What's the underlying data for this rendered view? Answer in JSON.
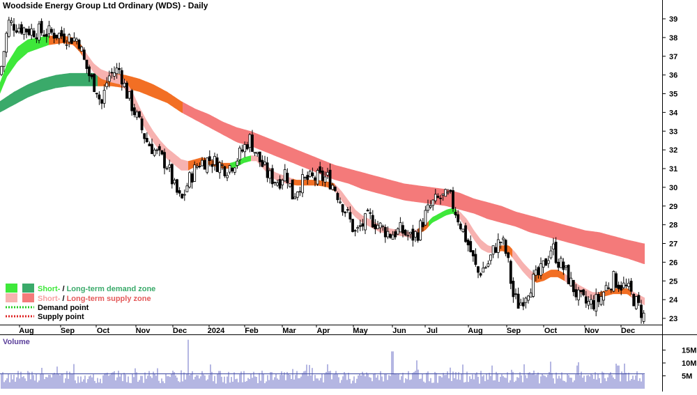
{
  "chart_data": {
    "type": "candlestick",
    "title": "Woodside Energy Group Ltd Ordinary (WDS) - Daily",
    "x_months": [
      "Aug",
      "Sep",
      "Oct",
      "Nov",
      "Dec",
      "2024",
      "Feb",
      "Mar",
      "Apr",
      "May",
      "Jun",
      "Jul",
      "Aug",
      "Sep",
      "Oct",
      "Nov",
      "Dec"
    ],
    "y_ticks": [
      23,
      24,
      25,
      26,
      27,
      28,
      29,
      30,
      31,
      32,
      33,
      34,
      35,
      36,
      37,
      38,
      39
    ],
    "ylim": [
      22.6,
      39.6
    ],
    "grid": false,
    "legend_position": "bottom-left",
    "legend": {
      "row1_a": "Short-",
      "row1_b": " / ",
      "row1_c": "Long-term demand zone",
      "row2_a": "Short-",
      "row2_b": " / ",
      "row2_c": "Long-term supply zone",
      "row3": "Demand point",
      "row4": "Supply point"
    },
    "colors": {
      "short_demand": "#3ee83a",
      "long_demand": "#3aaa6a",
      "short_supply": "#f7b2b0",
      "long_supply": "#f47a7a",
      "transition": "#f26f24",
      "demand_point": "#22cc22",
      "supply_point": "#dd2222",
      "volume_line": "#4a55a8",
      "volume_bar": "#6a6cc4"
    },
    "price_series": [
      [
        0,
        36.0
      ],
      [
        12,
        38.8
      ],
      [
        25,
        38.6
      ],
      [
        40,
        38.4
      ],
      [
        60,
        38.3
      ],
      [
        80,
        38.2
      ],
      [
        100,
        38.0
      ],
      [
        113,
        37.9
      ],
      [
        120,
        36.8
      ],
      [
        130,
        35.8
      ],
      [
        140,
        35.2
      ],
      [
        145,
        34.3
      ],
      [
        155,
        35.9
      ],
      [
        165,
        36.2
      ],
      [
        172,
        36.3
      ],
      [
        180,
        35.2
      ],
      [
        190,
        34.3
      ],
      [
        200,
        33.4
      ],
      [
        210,
        32.5
      ],
      [
        225,
        31.8
      ],
      [
        240,
        31.2
      ],
      [
        250,
        30.0
      ],
      [
        260,
        29.2
      ],
      [
        270,
        30.3
      ],
      [
        285,
        31.3
      ],
      [
        300,
        31.5
      ],
      [
        315,
        31.2
      ],
      [
        325,
        31.0
      ],
      [
        335,
        31.3
      ],
      [
        345,
        31.8
      ],
      [
        358,
        32.6
      ],
      [
        370,
        31.6
      ],
      [
        385,
        30.6
      ],
      [
        400,
        30.3
      ],
      [
        410,
        30.9
      ],
      [
        420,
        29.5
      ],
      [
        430,
        30.2
      ],
      [
        440,
        30.4
      ],
      [
        455,
        30.5
      ],
      [
        470,
        30.5
      ],
      [
        480,
        30.0
      ],
      [
        490,
        29.2
      ],
      [
        500,
        28.4
      ],
      [
        510,
        27.5
      ],
      [
        520,
        28.0
      ],
      [
        530,
        28.4
      ],
      [
        545,
        27.9
      ],
      [
        560,
        27.5
      ],
      [
        575,
        27.7
      ],
      [
        590,
        27.3
      ],
      [
        600,
        27.6
      ],
      [
        610,
        28.5
      ],
      [
        620,
        29.1
      ],
      [
        630,
        29.4
      ],
      [
        645,
        29.5
      ],
      [
        655,
        28.6
      ],
      [
        665,
        27.6
      ],
      [
        675,
        26.6
      ],
      [
        685,
        25.4
      ],
      [
        700,
        25.9
      ],
      [
        710,
        26.8
      ],
      [
        720,
        27.2
      ],
      [
        728,
        26.2
      ],
      [
        736,
        24.2
      ],
      [
        745,
        23.7
      ],
      [
        755,
        24.4
      ],
      [
        765,
        25.0
      ],
      [
        775,
        25.4
      ],
      [
        785,
        26.2
      ],
      [
        792,
        26.9
      ],
      [
        800,
        26.1
      ],
      [
        810,
        25.6
      ],
      [
        820,
        24.8
      ],
      [
        830,
        24.1
      ],
      [
        840,
        23.8
      ],
      [
        850,
        23.8
      ],
      [
        860,
        24.0
      ],
      [
        870,
        24.7
      ],
      [
        880,
        25.1
      ],
      [
        890,
        24.8
      ],
      [
        900,
        24.6
      ],
      [
        910,
        24.0
      ],
      [
        918,
        23.5
      ],
      [
        924,
        23.1
      ]
    ],
    "short_zone": [
      [
        0,
        35.6,
        35.0
      ],
      [
        10,
        36.6,
        35.9
      ],
      [
        25,
        37.5,
        36.7
      ],
      [
        40,
        37.9,
        37.2
      ],
      [
        55,
        38.0,
        37.4
      ],
      [
        70,
        38.1,
        37.6
      ],
      [
        90,
        38.1,
        37.7
      ],
      [
        105,
        38.0,
        37.6
      ],
      [
        115,
        37.7,
        37.2
      ],
      [
        125,
        37.1,
        36.6
      ],
      [
        135,
        36.6,
        36.1
      ],
      [
        145,
        36.3,
        35.8
      ],
      [
        160,
        36.1,
        35.6
      ],
      [
        172,
        36.0,
        35.5
      ],
      [
        180,
        35.7,
        35.2
      ],
      [
        190,
        35.1,
        34.5
      ],
      [
        200,
        34.3,
        33.7
      ],
      [
        210,
        33.6,
        33.0
      ],
      [
        220,
        33.0,
        32.4
      ],
      [
        230,
        32.5,
        31.9
      ],
      [
        240,
        32.1,
        31.5
      ],
      [
        250,
        31.8,
        31.2
      ],
      [
        260,
        31.5,
        30.9
      ],
      [
        270,
        31.4,
        30.9
      ],
      [
        280,
        31.5,
        31.1
      ],
      [
        290,
        31.6,
        31.2
      ],
      [
        300,
        31.5,
        31.2
      ],
      [
        310,
        31.4,
        31.1
      ],
      [
        320,
        31.3,
        31.0
      ],
      [
        330,
        31.3,
        31.0
      ],
      [
        340,
        31.4,
        31.1
      ],
      [
        350,
        31.6,
        31.3
      ],
      [
        360,
        31.7,
        31.4
      ],
      [
        368,
        31.7,
        31.4
      ],
      [
        375,
        31.5,
        31.1
      ],
      [
        385,
        31.1,
        30.7
      ],
      [
        395,
        30.8,
        30.4
      ],
      [
        410,
        30.6,
        30.2
      ],
      [
        425,
        30.4,
        30.1
      ],
      [
        440,
        30.4,
        30.1
      ],
      [
        455,
        30.4,
        30.1
      ],
      [
        470,
        30.3,
        30.0
      ],
      [
        480,
        30.2,
        29.8
      ],
      [
        490,
        29.8,
        29.3
      ],
      [
        500,
        29.3,
        28.8
      ],
      [
        510,
        28.8,
        28.4
      ],
      [
        520,
        28.5,
        28.1
      ],
      [
        530,
        28.3,
        27.9
      ],
      [
        545,
        28.0,
        27.6
      ],
      [
        560,
        27.8,
        27.5
      ],
      [
        575,
        27.7,
        27.4
      ],
      [
        590,
        27.6,
        27.3
      ],
      [
        600,
        27.8,
        27.5
      ],
      [
        610,
        28.0,
        27.7
      ],
      [
        620,
        28.4,
        28.1
      ],
      [
        630,
        28.6,
        28.3
      ],
      [
        640,
        28.8,
        28.5
      ],
      [
        650,
        28.9,
        28.6
      ],
      [
        660,
        28.7,
        28.3
      ],
      [
        670,
        28.3,
        27.8
      ],
      [
        680,
        27.7,
        27.2
      ],
      [
        690,
        27.2,
        26.7
      ],
      [
        700,
        26.9,
        26.5
      ],
      [
        710,
        26.8,
        26.5
      ],
      [
        720,
        26.9,
        26.6
      ],
      [
        730,
        26.9,
        26.5
      ],
      [
        740,
        26.5,
        26.0
      ],
      [
        750,
        26.0,
        25.5
      ],
      [
        760,
        25.6,
        25.1
      ],
      [
        770,
        25.3,
        24.9
      ],
      [
        780,
        25.4,
        25.0
      ],
      [
        790,
        25.6,
        25.2
      ],
      [
        800,
        25.6,
        25.2
      ],
      [
        810,
        25.4,
        25.0
      ],
      [
        820,
        25.1,
        24.7
      ],
      [
        830,
        24.8,
        24.4
      ],
      [
        840,
        24.6,
        24.2
      ],
      [
        850,
        24.4,
        24.0
      ],
      [
        860,
        24.4,
        24.1
      ],
      [
        870,
        24.5,
        24.2
      ],
      [
        880,
        24.6,
        24.3
      ],
      [
        890,
        24.6,
        24.3
      ],
      [
        900,
        24.6,
        24.3
      ],
      [
        910,
        24.4,
        24.0
      ],
      [
        925,
        24.1,
        23.7
      ]
    ],
    "long_zone": [
      [
        0,
        34.6,
        34.0
      ],
      [
        20,
        35.1,
        34.4
      ],
      [
        40,
        35.5,
        34.8
      ],
      [
        60,
        35.8,
        35.1
      ],
      [
        80,
        36.0,
        35.3
      ],
      [
        100,
        36.1,
        35.4
      ],
      [
        120,
        36.1,
        35.4
      ],
      [
        140,
        36.1,
        35.4
      ],
      [
        160,
        36.1,
        35.4
      ],
      [
        180,
        36.0,
        35.3
      ],
      [
        200,
        35.8,
        35.1
      ],
      [
        220,
        35.5,
        34.8
      ],
      [
        240,
        35.1,
        34.5
      ],
      [
        260,
        34.6,
        34.0
      ],
      [
        280,
        34.2,
        33.6
      ],
      [
        300,
        33.9,
        33.2
      ],
      [
        320,
        33.5,
        32.8
      ],
      [
        340,
        33.2,
        32.4
      ],
      [
        360,
        33.0,
        32.2
      ],
      [
        380,
        32.7,
        31.9
      ],
      [
        400,
        32.4,
        31.6
      ],
      [
        420,
        32.1,
        31.3
      ],
      [
        440,
        31.8,
        31.0
      ],
      [
        460,
        31.5,
        30.7
      ],
      [
        480,
        31.2,
        30.4
      ],
      [
        500,
        31.0,
        30.2
      ],
      [
        520,
        30.8,
        29.9
      ],
      [
        540,
        30.6,
        29.7
      ],
      [
        560,
        30.4,
        29.5
      ],
      [
        580,
        30.2,
        29.3
      ],
      [
        600,
        30.1,
        29.2
      ],
      [
        620,
        30.0,
        29.1
      ],
      [
        640,
        29.9,
        29.0
      ],
      [
        660,
        29.7,
        28.8
      ],
      [
        680,
        29.4,
        28.6
      ],
      [
        700,
        29.2,
        28.3
      ],
      [
        720,
        29.0,
        28.1
      ],
      [
        740,
        28.7,
        27.9
      ],
      [
        760,
        28.5,
        27.6
      ],
      [
        780,
        28.3,
        27.4
      ],
      [
        800,
        28.1,
        27.2
      ],
      [
        820,
        27.9,
        27.0
      ],
      [
        840,
        27.7,
        26.8
      ],
      [
        860,
        27.6,
        26.6
      ],
      [
        880,
        27.4,
        26.4
      ],
      [
        900,
        27.2,
        26.2
      ],
      [
        924,
        27.0,
        25.9
      ]
    ],
    "short_zone_segments": [
      {
        "from": 0,
        "to": 70,
        "kind": "short_demand"
      },
      {
        "from": 70,
        "to": 118,
        "kind": "transition"
      },
      {
        "from": 118,
        "to": 270,
        "kind": "short_supply"
      },
      {
        "from": 270,
        "to": 330,
        "kind": "transition"
      },
      {
        "from": 330,
        "to": 360,
        "kind": "short_demand"
      },
      {
        "from": 360,
        "to": 420,
        "kind": "short_supply"
      },
      {
        "from": 420,
        "to": 480,
        "kind": "transition"
      },
      {
        "from": 480,
        "to": 600,
        "kind": "short_supply"
      },
      {
        "from": 600,
        "to": 615,
        "kind": "transition"
      },
      {
        "from": 615,
        "to": 655,
        "kind": "short_demand"
      },
      {
        "from": 655,
        "to": 715,
        "kind": "short_supply"
      },
      {
        "from": 715,
        "to": 735,
        "kind": "transition"
      },
      {
        "from": 735,
        "to": 765,
        "kind": "short_supply"
      },
      {
        "from": 765,
        "to": 810,
        "kind": "transition"
      },
      {
        "from": 810,
        "to": 860,
        "kind": "short_supply"
      },
      {
        "from": 860,
        "to": 905,
        "kind": "transition"
      },
      {
        "from": 905,
        "to": 925,
        "kind": "short_supply"
      }
    ],
    "long_zone_segments": [
      {
        "from": 0,
        "to": 140,
        "kind": "long_demand"
      },
      {
        "from": 140,
        "to": 262,
        "kind": "transition"
      },
      {
        "from": 262,
        "to": 925,
        "kind": "long_supply"
      }
    ],
    "volume": {
      "label": "Volume",
      "y_ticks": [
        "15M",
        "10M",
        "5M"
      ],
      "y_values": [
        15,
        10,
        5
      ],
      "ylim": [
        0,
        20
      ],
      "average": 5.8
    }
  }
}
